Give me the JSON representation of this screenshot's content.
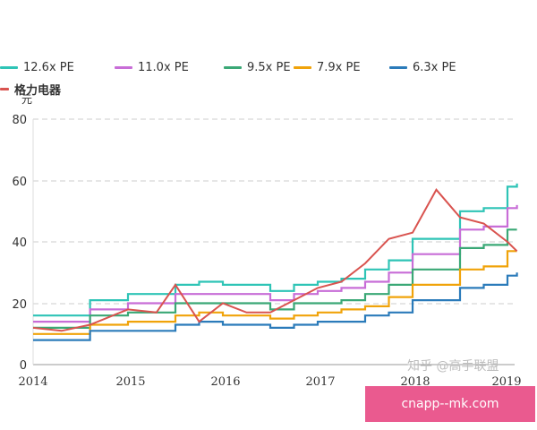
{
  "legend": [
    {
      "label": "12.6x PE",
      "color": "#2ec4b6"
    },
    {
      "label": "11.0x PE",
      "color": "#c86dd7"
    },
    {
      "label": "9.5x PE",
      "color": "#3aa876"
    },
    {
      "label": "7.9x PE",
      "color": "#f0a30a"
    },
    {
      "label": "6.3x PE",
      "color": "#2b7bba"
    },
    {
      "label": "格力电器",
      "color": "#d9534f"
    }
  ],
  "unit_label": "元",
  "watermark": "知乎 @高手联盟",
  "banner_text": "cnapp--mk.com",
  "chart_data": {
    "type": "line",
    "title": "",
    "xlabel": "",
    "ylabel": "元",
    "ylim": [
      0,
      80
    ],
    "yticks": [
      0,
      20,
      40,
      60,
      80
    ],
    "xticks": [
      "2014",
      "2015",
      "2016",
      "2017",
      "2018",
      "2019"
    ],
    "grid": "horizontal dashed",
    "legend_position": "top",
    "x": [
      2014.0,
      2014.3,
      2014.6,
      2015.0,
      2015.3,
      2015.5,
      2015.75,
      2016.0,
      2016.25,
      2016.5,
      2016.75,
      2017.0,
      2017.25,
      2017.5,
      2017.75,
      2018.0,
      2018.25,
      2018.5,
      2018.75,
      2019.0,
      2019.1
    ],
    "series": [
      {
        "name": "12.6x PE",
        "values": [
          16,
          16,
          21,
          23,
          23,
          26,
          27,
          26,
          26,
          24,
          26,
          27,
          28,
          31,
          34,
          41,
          41,
          50,
          51,
          58,
          59
        ]
      },
      {
        "name": "11.0x PE",
        "values": [
          14,
          14,
          18,
          20,
          20,
          23,
          23,
          23,
          23,
          21,
          23,
          24,
          25,
          27,
          30,
          36,
          36,
          44,
          45,
          51,
          52
        ]
      },
      {
        "name": "9.5x PE",
        "values": [
          12,
          12,
          16,
          17,
          17,
          20,
          20,
          20,
          20,
          18,
          20,
          20,
          21,
          23,
          26,
          31,
          31,
          38,
          39,
          44,
          44
        ]
      },
      {
        "name": "7.9x PE",
        "values": [
          10,
          10,
          13,
          14,
          14,
          16,
          17,
          16,
          16,
          15,
          16,
          17,
          18,
          19,
          22,
          26,
          26,
          31,
          32,
          37,
          37
        ]
      },
      {
        "name": "6.3x PE",
        "values": [
          8,
          8,
          11,
          11,
          11,
          13,
          14,
          13,
          13,
          12,
          13,
          14,
          14,
          16,
          17,
          21,
          21,
          25,
          26,
          29,
          30
        ]
      },
      {
        "name": "格力电器",
        "values": [
          12,
          11,
          13,
          18,
          17,
          26,
          14,
          20,
          17,
          17,
          21,
          25,
          27,
          33,
          41,
          43,
          57,
          48,
          46,
          40,
          37
        ]
      }
    ]
  }
}
